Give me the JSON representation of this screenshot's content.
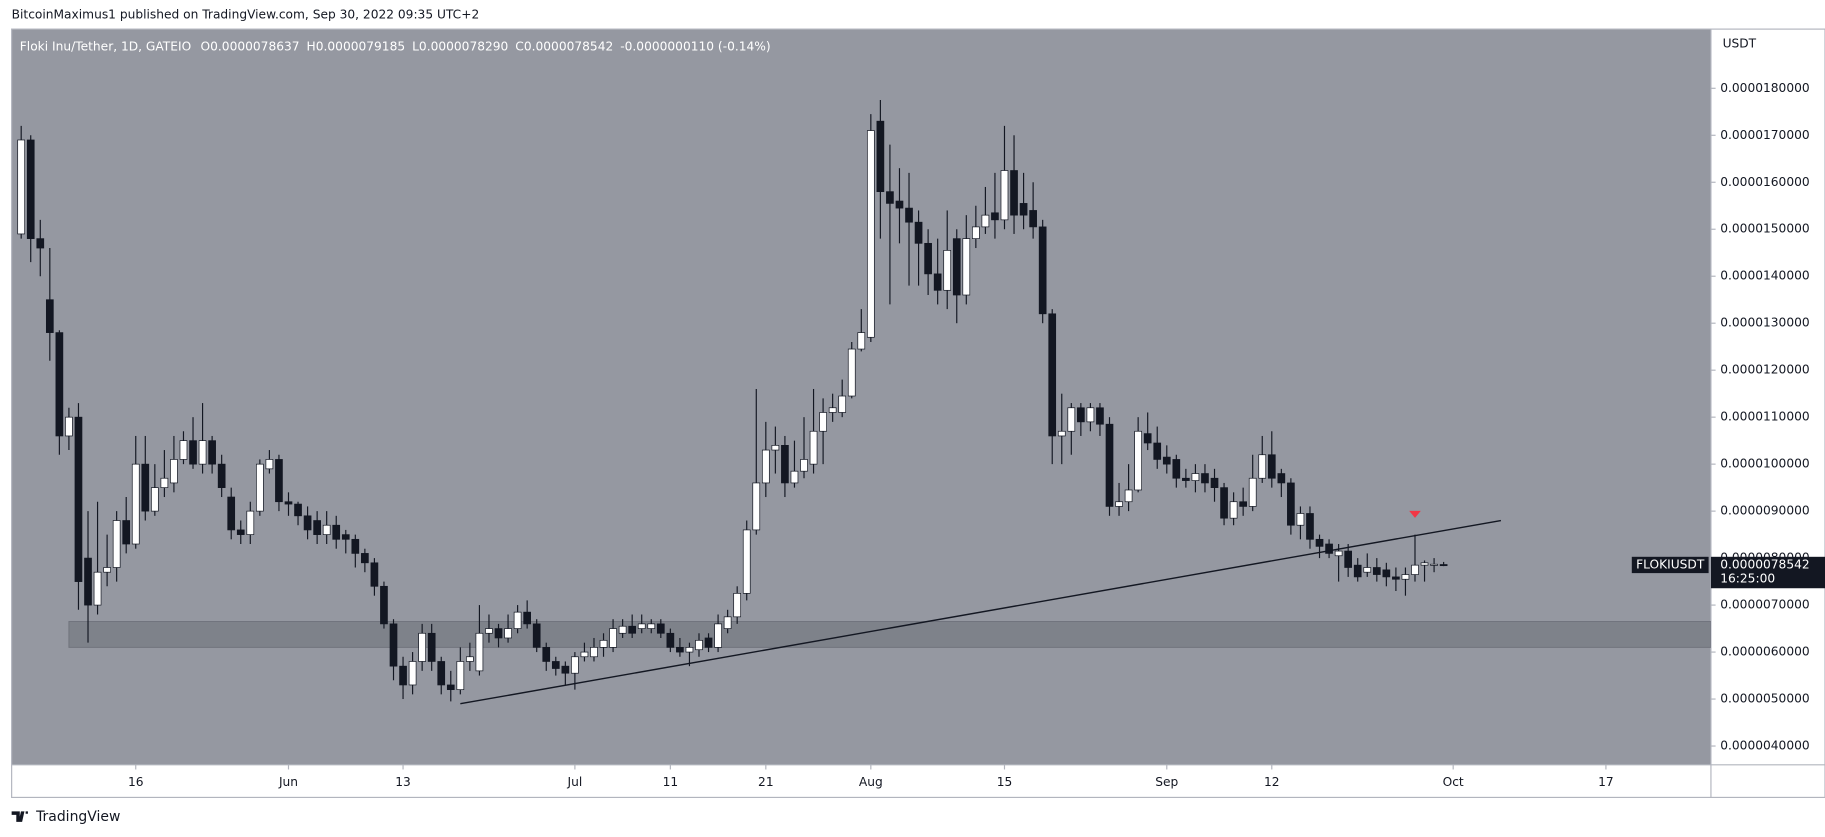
{
  "header": {
    "publisher": "BitcoinMaximus1 published on TradingView.com, Sep 30, 2022 09:35 UTC+2",
    "footer": "TradingView"
  },
  "chart_data": {
    "type": "candlestick",
    "legend": {
      "symbol": "Floki Inu/Tether, 1D, GATEIO",
      "fields": [
        {
          "key": "O",
          "value": "0.0000078637"
        },
        {
          "key": "H",
          "value": "0.0000079185"
        },
        {
          "key": "L",
          "value": "0.0000078290"
        },
        {
          "key": "C",
          "value": "0.0000078542"
        }
      ],
      "change": "-0.0000000110 (-0.14%)"
    },
    "y_axis_label": "USDT",
    "x": [
      "2022-05-04",
      "2022-05-05",
      "2022-05-06",
      "2022-05-07",
      "2022-05-08",
      "2022-05-09",
      "2022-05-10",
      "2022-05-11",
      "2022-05-12",
      "2022-05-13",
      "2022-05-14",
      "2022-05-15",
      "2022-05-16",
      "2022-05-17",
      "2022-05-18",
      "2022-05-19",
      "2022-05-20",
      "2022-05-21",
      "2022-05-22",
      "2022-05-23",
      "2022-05-24",
      "2022-05-25",
      "2022-05-26",
      "2022-05-27",
      "2022-05-28",
      "2022-05-29",
      "2022-05-30",
      "2022-05-31",
      "2022-06-01",
      "2022-06-02",
      "2022-06-03",
      "2022-06-04",
      "2022-06-05",
      "2022-06-06",
      "2022-06-07",
      "2022-06-08",
      "2022-06-09",
      "2022-06-10",
      "2022-06-11",
      "2022-06-12",
      "2022-06-13",
      "2022-06-14",
      "2022-06-15",
      "2022-06-16",
      "2022-06-17",
      "2022-06-18",
      "2022-06-19",
      "2022-06-20",
      "2022-06-21",
      "2022-06-22",
      "2022-06-23",
      "2022-06-24",
      "2022-06-25",
      "2022-06-26",
      "2022-06-27",
      "2022-06-28",
      "2022-06-29",
      "2022-06-30",
      "2022-07-01",
      "2022-07-02",
      "2022-07-03",
      "2022-07-04",
      "2022-07-05",
      "2022-07-06",
      "2022-07-07",
      "2022-07-08",
      "2022-07-09",
      "2022-07-10",
      "2022-07-11",
      "2022-07-12",
      "2022-07-13",
      "2022-07-14",
      "2022-07-15",
      "2022-07-16",
      "2022-07-17",
      "2022-07-18",
      "2022-07-19",
      "2022-07-20",
      "2022-07-21",
      "2022-07-22",
      "2022-07-23",
      "2022-07-24",
      "2022-07-25",
      "2022-07-26",
      "2022-07-27",
      "2022-07-28",
      "2022-07-29",
      "2022-07-30",
      "2022-07-31",
      "2022-08-01",
      "2022-08-02",
      "2022-08-03",
      "2022-08-04",
      "2022-08-05",
      "2022-08-06",
      "2022-08-07",
      "2022-08-08",
      "2022-08-09",
      "2022-08-10",
      "2022-08-11",
      "2022-08-12",
      "2022-08-13",
      "2022-08-14",
      "2022-08-15",
      "2022-08-16",
      "2022-08-17",
      "2022-08-18",
      "2022-08-19",
      "2022-08-20",
      "2022-08-21",
      "2022-08-22",
      "2022-08-23",
      "2022-08-24",
      "2022-08-25",
      "2022-08-26",
      "2022-08-27",
      "2022-08-28",
      "2022-08-29",
      "2022-08-30",
      "2022-08-31",
      "2022-09-01",
      "2022-09-02",
      "2022-09-03",
      "2022-09-04",
      "2022-09-05",
      "2022-09-06",
      "2022-09-07",
      "2022-09-08",
      "2022-09-09",
      "2022-09-10",
      "2022-09-11",
      "2022-09-12",
      "2022-09-13",
      "2022-09-14",
      "2022-09-15",
      "2022-09-16",
      "2022-09-17",
      "2022-09-18",
      "2022-09-19",
      "2022-09-20",
      "2022-09-21",
      "2022-09-22",
      "2022-09-23",
      "2022-09-24",
      "2022-09-25",
      "2022-09-26",
      "2022-09-27",
      "2022-09-28",
      "2022-09-29",
      "2022-09-30"
    ],
    "open": [
      1.49e-05,
      1.69e-05,
      1.48e-05,
      1.35e-05,
      1.28e-05,
      1.06e-05,
      1.1e-05,
      8e-06,
      7e-06,
      7.7e-06,
      7.8e-06,
      8.8e-06,
      8.3e-06,
      1e-05,
      9e-06,
      9.5e-06,
      9.6e-06,
      1.01e-05,
      1.05e-05,
      1e-05,
      1.05e-05,
      1e-05,
      9.3e-06,
      8.6e-06,
      8.5e-06,
      9e-06,
      9.9e-06,
      1.01e-05,
      9.2e-06,
      9.15e-06,
      8.9e-06,
      8.8e-06,
      8.5e-06,
      8.7e-06,
      8.5e-06,
      8.4e-06,
      8.1e-06,
      7.9e-06,
      7.4e-06,
      6.6e-06,
      5.7e-06,
      5.3e-06,
      5.8e-06,
      6.4e-06,
      5.8e-06,
      5.3e-06,
      5.2e-06,
      5.8e-06,
      5.6e-06,
      6.4e-06,
      6.5e-06,
      6.3e-06,
      6.5e-06,
      6.85e-06,
      6.6e-06,
      6.1e-06,
      5.8e-06,
      5.7e-06,
      5.55e-06,
      5.9e-06,
      5.9e-06,
      6.1e-06,
      6.1e-06,
      6.4e-06,
      6.55e-06,
      6.5e-06,
      6.5e-06,
      6.6e-06,
      6.4e-06,
      6.1e-06,
      6e-06,
      6.05e-06,
      6.3e-06,
      6.1e-06,
      6.5e-06,
      6.75e-06,
      7.25e-06,
      8.6e-06,
      9.6e-06,
      1.03e-05,
      1.04e-05,
      9.6e-06,
      9.85e-06,
      1e-05,
      1.07e-05,
      1.11e-05,
      1.11e-05,
      1.145e-05,
      1.245e-05,
      1.27e-05,
      1.73e-05,
      1.58e-05,
      1.56e-05,
      1.545e-05,
      1.515e-05,
      1.47e-05,
      1.405e-05,
      1.37e-05,
      1.48e-05,
      1.36e-05,
      1.48e-05,
      1.505e-05,
      1.535e-05,
      1.52e-05,
      1.625e-05,
      1.555e-05,
      1.54e-05,
      1.505e-05,
      1.32e-05,
      1.06e-05,
      1.07e-05,
      1.12e-05,
      1.09e-05,
      1.12e-05,
      1.085e-05,
      9.1e-06,
      9.2e-06,
      9.45e-06,
      1.065e-05,
      1.045e-05,
      1.015e-05,
      1.01e-05,
      9.7e-06,
      9.65e-06,
      9.8e-06,
      9.7e-06,
      9.5e-06,
      8.85e-06,
      9.2e-06,
      9.1e-06,
      9.7e-06,
      1.02e-05,
      9.8e-06,
      9.6e-06,
      8.7e-06,
      8.95e-06,
      8.4e-06,
      8.3e-06,
      8.05e-06,
      8.15e-06,
      7.85e-06,
      7.7e-06,
      7.8e-06,
      7.75e-06,
      7.6e-06,
      7.55e-06,
      7.65e-06,
      7.85e-06,
      7.86e-06,
      7.8637e-06
    ],
    "high": [
      1.72e-05,
      1.7e-05,
      1.52e-05,
      1.46e-05,
      1.285e-05,
      1.12e-05,
      1.13e-05,
      9e-06,
      9.2e-06,
      8.5e-06,
      9e-06,
      9.3e-06,
      1.06e-05,
      1.06e-05,
      1e-05,
      1.03e-05,
      1.06e-05,
      1.07e-05,
      1.1e-05,
      1.13e-05,
      1.06e-05,
      1.02e-05,
      9.5e-06,
      8.8e-06,
      9.2e-06,
      1.01e-05,
      1.03e-05,
      1.02e-05,
      9.4e-06,
      9.2e-06,
      9.1e-06,
      9e-06,
      9e-06,
      8.9e-06,
      8.6e-06,
      8.5e-06,
      8.2e-06,
      8e-06,
      7.5e-06,
      6.7e-06,
      5.9e-06,
      6e-06,
      6.6e-06,
      6.6e-06,
      5.9e-06,
      5.6e-06,
      6.1e-06,
      6.2e-06,
      7e-06,
      6.8e-06,
      6.6e-06,
      6.8e-06,
      7e-06,
      7.1e-06,
      6.7e-06,
      6.2e-06,
      5.9e-06,
      5.8e-06,
      6e-06,
      6.2e-06,
      6.3e-06,
      6.4e-06,
      6.7e-06,
      6.7e-06,
      6.8e-06,
      6.8e-06,
      6.7e-06,
      6.7e-06,
      6.5e-06,
      6.3e-06,
      6.2e-06,
      6.4e-06,
      6.4e-06,
      6.8e-06,
      6.9e-06,
      7.4e-06,
      8.8e-06,
      1.16e-05,
      1.09e-05,
      1.08e-05,
      1.06e-05,
      1.05e-05,
      1.1e-05,
      1.16e-05,
      1.14e-05,
      1.15e-05,
      1.18e-05,
      1.26e-05,
      1.33e-05,
      1.745e-05,
      1.775e-05,
      1.68e-05,
      1.63e-05,
      1.62e-05,
      1.54e-05,
      1.5e-05,
      1.48e-05,
      1.54e-05,
      1.5e-05,
      1.53e-05,
      1.55e-05,
      1.59e-05,
      1.62e-05,
      1.72e-05,
      1.7e-05,
      1.62e-05,
      1.6e-05,
      1.52e-05,
      1.33e-05,
      1.15e-05,
      1.13e-05,
      1.13e-05,
      1.13e-05,
      1.13e-05,
      1.1e-05,
      9.6e-06,
      1e-05,
      1.1e-05,
      1.11e-05,
      1.08e-05,
      1.04e-05,
      1.02e-05,
      9.9e-06,
      1e-05,
      1e-05,
      9.9e-06,
      9.6e-06,
      9.4e-06,
      9.5e-06,
      1.02e-05,
      1.06e-05,
      1.07e-05,
      9.9e-06,
      9.7e-06,
      9.1e-06,
      9.1e-06,
      8.5e-06,
      8.4e-06,
      8.3e-06,
      8.3e-06,
      8e-06,
      8.1e-06,
      8e-06,
      7.9e-06,
      7.8e-06,
      7.8e-06,
      8.5e-06,
      7.95e-06,
      8e-06,
      7.9185e-06
    ],
    "low": [
      1.48e-05,
      1.43e-05,
      1.4e-05,
      1.22e-05,
      1.02e-05,
      1.03e-05,
      6.9e-06,
      6.2e-06,
      6.8e-06,
      7.4e-06,
      7.5e-06,
      8.1e-06,
      8.2e-06,
      8.8e-06,
      8.9e-06,
      9.3e-06,
      9.4e-06,
      1e-05,
      9.9e-06,
      9.8e-06,
      9.8e-06,
      9.3e-06,
      8.4e-06,
      8.3e-06,
      8.3e-06,
      8.9e-06,
      9.8e-06,
      9e-06,
      8.9e-06,
      8.7e-06,
      8.4e-06,
      8.3e-06,
      8.3e-06,
      8.2e-06,
      8.1e-06,
      7.8e-06,
      7.7e-06,
      7.2e-06,
      6.5e-06,
      5.4e-06,
      5e-06,
      5.1e-06,
      5.6e-06,
      5.6e-06,
      5.1e-06,
      4.95e-06,
      5.1e-06,
      5.6e-06,
      5.5e-06,
      6.2e-06,
      6.1e-06,
      6.2e-06,
      6.4e-06,
      6.5e-06,
      6e-06,
      5.6e-06,
      5.5e-06,
      5.3e-06,
      5.2e-06,
      5.8e-06,
      5.8e-06,
      5.9e-06,
      6e-06,
      6.3e-06,
      6.3e-06,
      6.4e-06,
      6.4e-06,
      6.3e-06,
      6e-06,
      5.9e-06,
      5.7e-06,
      5.9e-06,
      6e-06,
      6e-06,
      6.4e-06,
      6.6e-06,
      7.1e-06,
      8.5e-06,
      9.3e-06,
      9.8e-06,
      9.3e-06,
      9.5e-06,
      9.7e-06,
      9.8e-06,
      1e-05,
      1.09e-05,
      1.1e-05,
      1.14e-05,
      1.24e-05,
      1.26e-05,
      1.48e-05,
      1.34e-05,
      1.47e-05,
      1.38e-05,
      1.38e-05,
      1.36e-05,
      1.34e-05,
      1.33e-05,
      1.3e-05,
      1.34e-05,
      1.46e-05,
      1.49e-05,
      1.48e-05,
      1.5e-05,
      1.49e-05,
      1.5e-05,
      1.48e-05,
      1.3e-05,
      1e-05,
      1e-05,
      1.02e-05,
      1.06e-05,
      1.07e-05,
      1.06e-05,
      8.9e-06,
      8.9e-06,
      9e-06,
      9.4e-06,
      1.03e-05,
      9.9e-06,
      9.8e-06,
      9.5e-06,
      9.5e-06,
      9.4e-06,
      9.4e-06,
      9.2e-06,
      8.7e-06,
      8.7e-06,
      8.9e-06,
      9e-06,
      9.6e-06,
      9.5e-06,
      9.3e-06,
      8.5e-06,
      8.4e-06,
      8.2e-06,
      8e-06,
      8e-06,
      7.5e-06,
      7.6e-06,
      7.5e-06,
      7.6e-06,
      7.5e-06,
      7.4e-06,
      7.3e-06,
      7.2e-06,
      7.5e-06,
      7.5e-06,
      7.7e-06,
      7.829e-06
    ],
    "close": [
      1.69e-05,
      1.48e-05,
      1.46e-05,
      1.28e-05,
      1.06e-05,
      1.1e-05,
      7.5e-06,
      7e-06,
      7.7e-06,
      7.8e-06,
      8.8e-06,
      8.3e-06,
      1e-05,
      9e-06,
      9.5e-06,
      9.7e-06,
      1.01e-05,
      1.05e-05,
      1e-05,
      1.05e-05,
      1e-05,
      9.5e-06,
      8.6e-06,
      8.5e-06,
      9e-06,
      1e-05,
      1.01e-05,
      9.2e-06,
      9.15e-06,
      8.9e-06,
      8.6e-06,
      8.5e-06,
      8.7e-06,
      8.4e-06,
      8.4e-06,
      8.1e-06,
      7.9e-06,
      7.4e-06,
      6.6e-06,
      5.7e-06,
      5.3e-06,
      5.8e-06,
      6.4e-06,
      5.8e-06,
      5.3e-06,
      5.2e-06,
      5.8e-06,
      5.9e-06,
      6.4e-06,
      6.5e-06,
      6.3e-06,
      6.5e-06,
      6.85e-06,
      6.6e-06,
      6.1e-06,
      5.8e-06,
      5.65e-06,
      5.55e-06,
      5.9e-06,
      6e-06,
      6.1e-06,
      6.25e-06,
      6.5e-06,
      6.55e-06,
      6.4e-06,
      6.6e-06,
      6.6e-06,
      6.4e-06,
      6.1e-06,
      6e-06,
      6.1e-06,
      6.25e-06,
      6.1e-06,
      6.6e-06,
      6.75e-06,
      7.25e-06,
      8.6e-06,
      9.6e-06,
      1.03e-05,
      1.04e-05,
      9.6e-06,
      9.85e-06,
      1.01e-05,
      1.07e-05,
      1.11e-05,
      1.12e-05,
      1.145e-05,
      1.245e-05,
      1.28e-05,
      1.71e-05,
      1.58e-05,
      1.555e-05,
      1.545e-05,
      1.515e-05,
      1.47e-05,
      1.405e-05,
      1.37e-05,
      1.455e-05,
      1.36e-05,
      1.48e-05,
      1.505e-05,
      1.53e-05,
      1.52e-05,
      1.625e-05,
      1.53e-05,
      1.53e-05,
      1.505e-05,
      1.32e-05,
      1.06e-05,
      1.07e-05,
      1.12e-05,
      1.09e-05,
      1.12e-05,
      1.085e-05,
      9.1e-06,
      9.2e-06,
      9.45e-06,
      1.07e-05,
      1.045e-05,
      1.01e-05,
      1e-05,
      9.7e-06,
      9.65e-06,
      9.8e-06,
      9.6e-06,
      9.5e-06,
      8.85e-06,
      9.2e-06,
      9.1e-06,
      9.7e-06,
      1.02e-05,
      9.7e-06,
      9.6e-06,
      8.7e-06,
      8.95e-06,
      8.4e-06,
      8.25e-06,
      8.1e-06,
      8.15e-06,
      7.8e-06,
      7.6e-06,
      7.8e-06,
      7.65e-06,
      7.6e-06,
      7.55e-06,
      7.65e-06,
      7.85e-06,
      7.9e-06,
      7.87e-06,
      7.8542e-06
    ],
    "up_color": "#ffffff",
    "down_color": "#131722",
    "xlim": [
      "2022-05-03",
      "2022-10-28"
    ],
    "xticks": [
      {
        "value": "2022-05-16",
        "label": "16"
      },
      {
        "value": "2022-06-01",
        "label": "Jun"
      },
      {
        "value": "2022-06-13",
        "label": "13"
      },
      {
        "value": "2022-07-01",
        "label": "Jul"
      },
      {
        "value": "2022-07-11",
        "label": "11"
      },
      {
        "value": "2022-07-21",
        "label": "21"
      },
      {
        "value": "2022-08-01",
        "label": "Aug"
      },
      {
        "value": "2022-08-15",
        "label": "15"
      },
      {
        "value": "2022-09-01",
        "label": "Sep"
      },
      {
        "value": "2022-09-12",
        "label": "12"
      },
      {
        "value": "2022-10-01",
        "label": "Oct"
      },
      {
        "value": "2022-10-17",
        "label": "17"
      }
    ],
    "ylim": [
      3.6e-06,
      1.926e-05
    ],
    "yticks": [
      {
        "value": 4e-06,
        "label": "0.0000040000"
      },
      {
        "value": 5e-06,
        "label": "0.0000050000"
      },
      {
        "value": 6e-06,
        "label": "0.0000060000"
      },
      {
        "value": 7e-06,
        "label": "0.0000070000"
      },
      {
        "value": 8e-06,
        "label": "0.0000080000"
      },
      {
        "value": 9e-06,
        "label": "0.0000090000"
      },
      {
        "value": 1e-05,
        "label": "0.0000100000"
      },
      {
        "value": 1.1e-05,
        "label": "0.0000110000"
      },
      {
        "value": 1.2e-05,
        "label": "0.0000120000"
      },
      {
        "value": 1.3e-05,
        "label": "0.0000130000"
      },
      {
        "value": 1.4e-05,
        "label": "0.0000140000"
      },
      {
        "value": 1.5e-05,
        "label": "0.0000150000"
      },
      {
        "value": 1.6e-05,
        "label": "0.0000160000"
      },
      {
        "value": 1.7e-05,
        "label": "0.0000170000"
      },
      {
        "value": 1.8e-05,
        "label": "0.0000180000"
      }
    ],
    "grid": false,
    "trendline": {
      "x": [
        "2022-06-19",
        "2022-10-06"
      ],
      "y": [
        4.9e-06,
        8.8e-06
      ],
      "color": "#131722"
    },
    "zone": {
      "x0": "2022-05-09",
      "y": [
        6.1e-06,
        6.65e-06
      ]
    },
    "marker": {
      "x": "2022-09-27",
      "y": 8.93e-06,
      "color": "#f23645"
    },
    "last": {
      "symbol": "FLOKIUSDT",
      "value": 7.8542e-06,
      "label": "0.0000078542",
      "countdown": "16:25:00"
    }
  }
}
